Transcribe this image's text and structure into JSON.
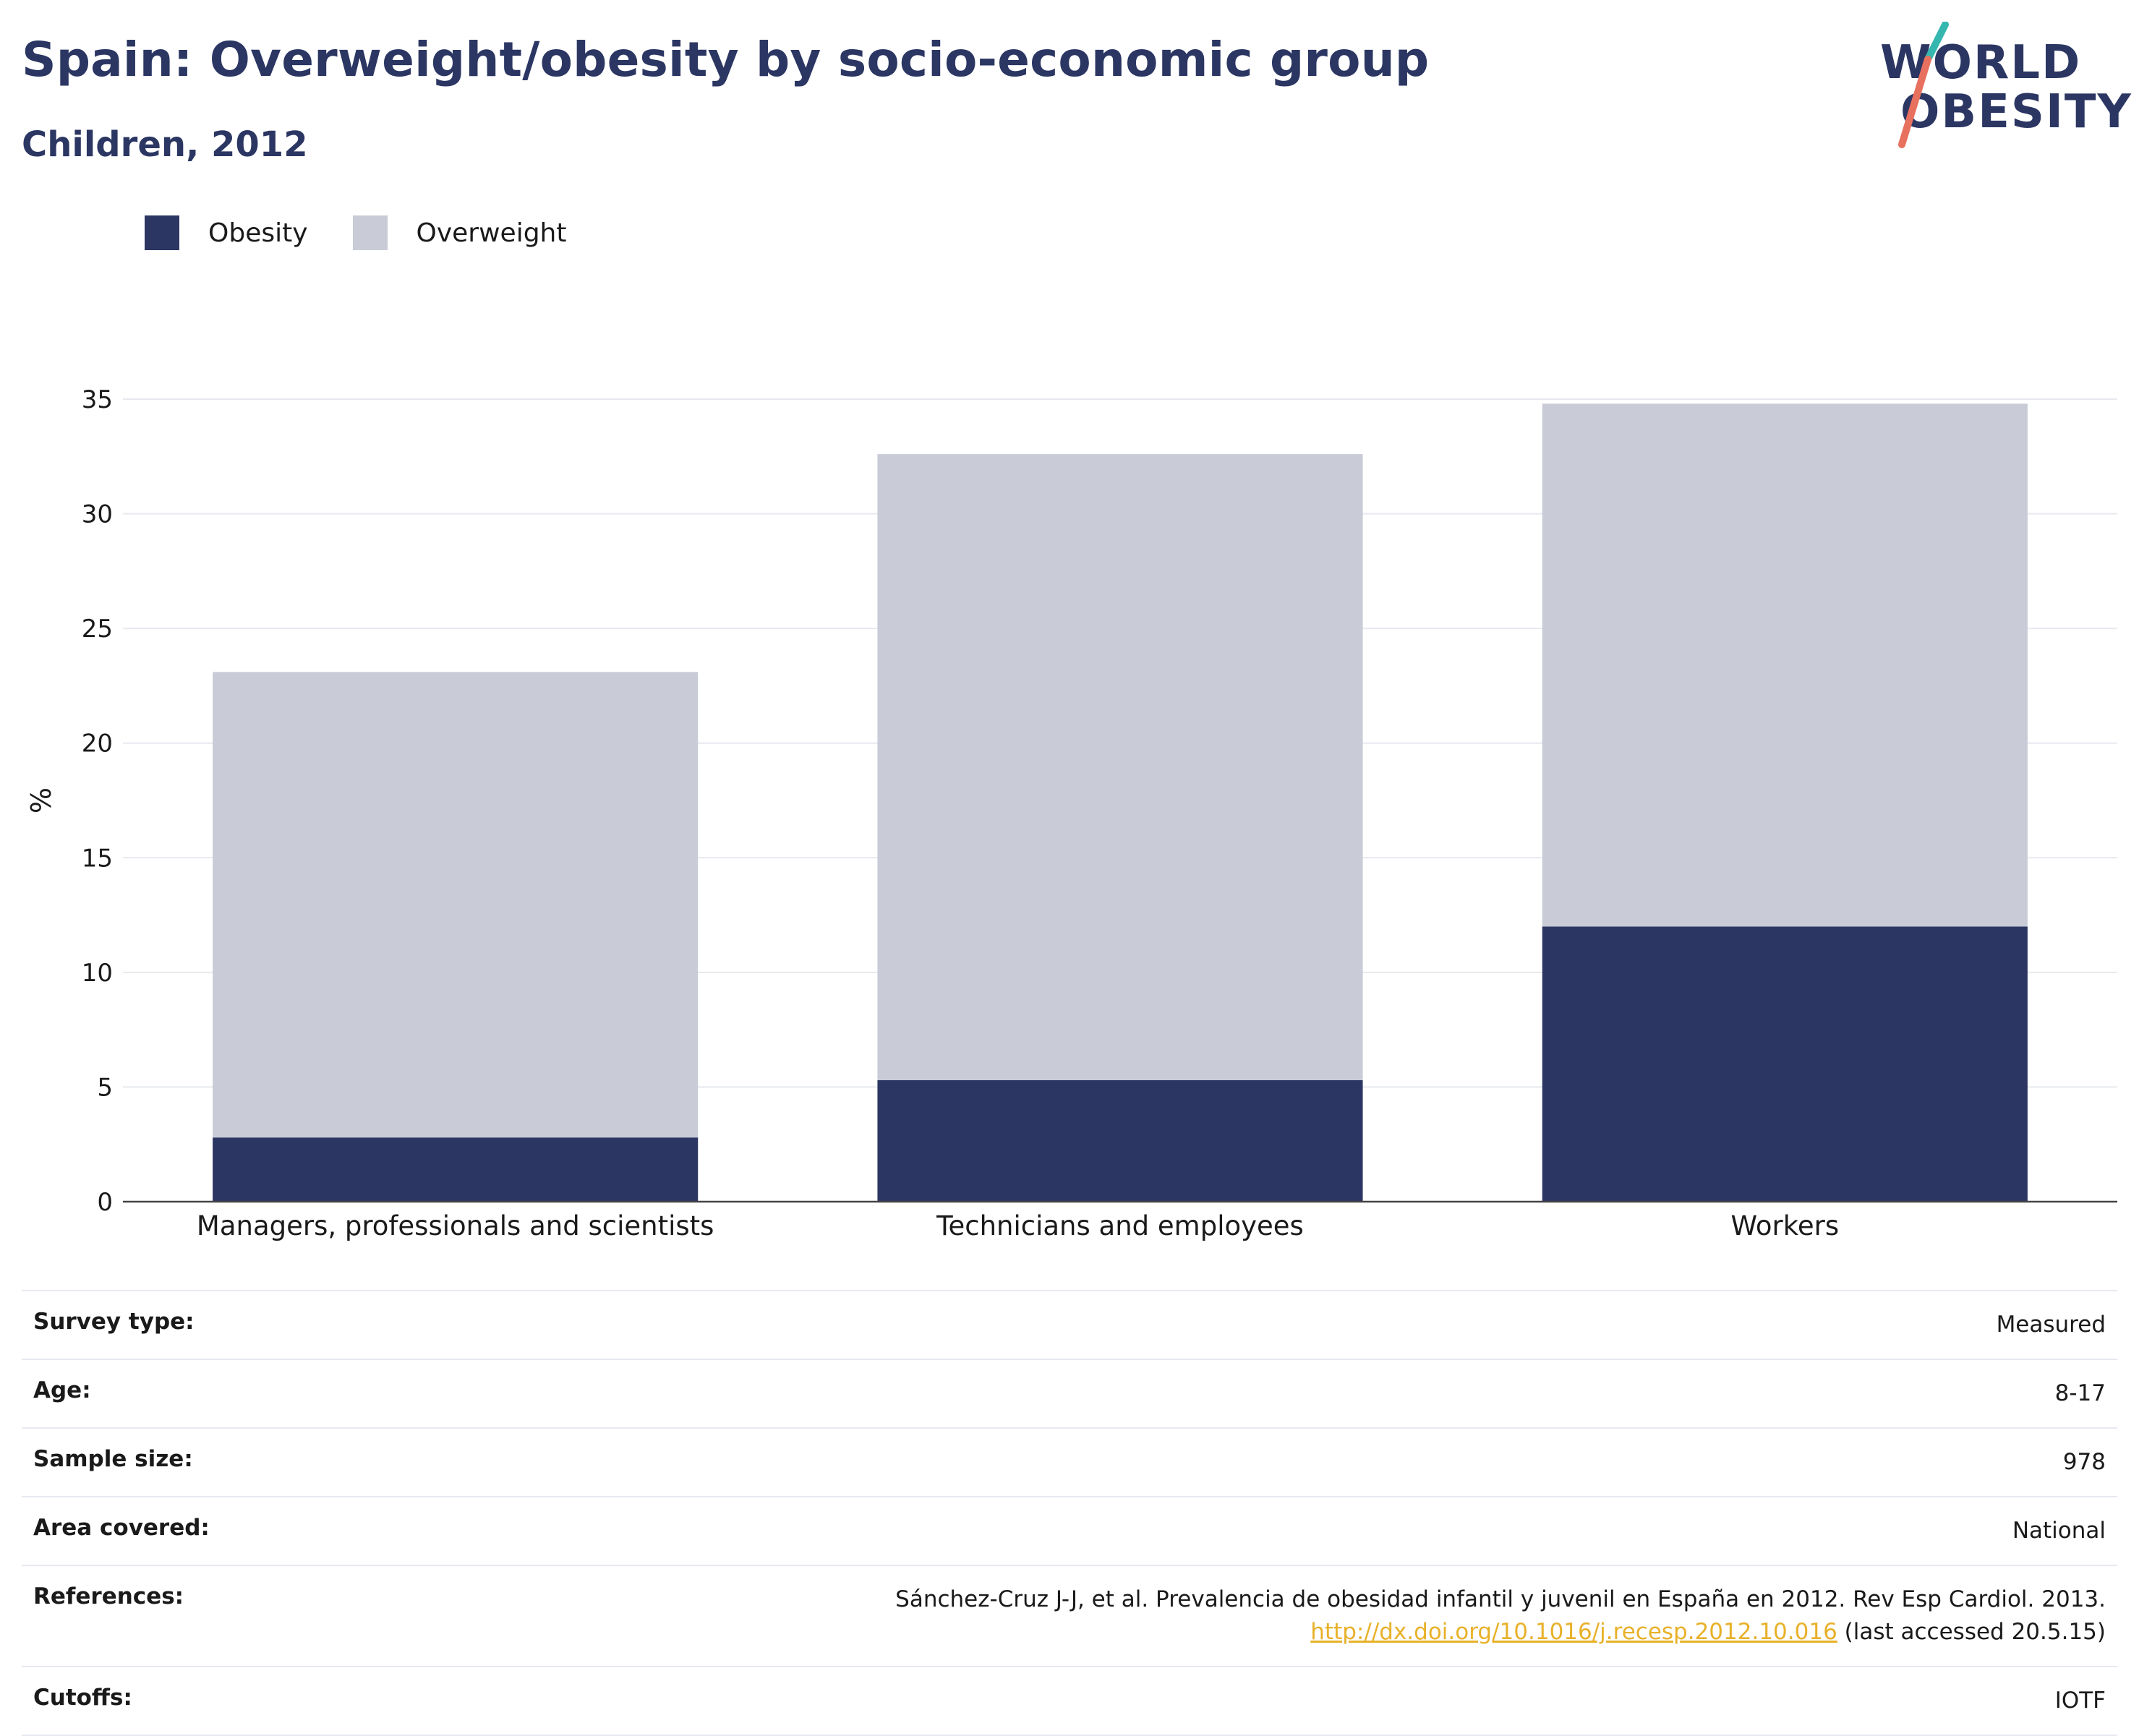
{
  "header": {
    "title": "Spain: Overweight/obesity by socio-economic group",
    "subtitle": "Children, 2012"
  },
  "logo": {
    "line1": "WORLD",
    "line2": "OBESITY"
  },
  "colors": {
    "obesity": "#2b3663",
    "overweight": "#c9cbd7",
    "link": "#e8b12a",
    "title": "#2b3663"
  },
  "chart_data": {
    "type": "bar",
    "stacked": true,
    "categories": [
      "Managers, professionals and scientists",
      "Technicians and employees",
      "Workers"
    ],
    "series": [
      {
        "name": "Obesity",
        "values": [
          2.8,
          5.3,
          12.0
        ]
      },
      {
        "name": "Overweight",
        "values": [
          20.3,
          27.3,
          22.8
        ]
      }
    ],
    "totals": [
      23.1,
      32.6,
      34.8
    ],
    "ylabel": "%",
    "ylim": [
      0,
      35
    ],
    "yticks": [
      0,
      5,
      10,
      15,
      20,
      25,
      30,
      35
    ],
    "grid": true,
    "legend_position": "top-left"
  },
  "info": {
    "survey_type_label": "Survey type:",
    "survey_type": "Measured",
    "age_label": "Age:",
    "age": "8-17",
    "sample_size_label": "Sample size:",
    "sample_size": "978",
    "area_label": "Area covered:",
    "area": "National",
    "references_label": "References:",
    "reference_text": "Sánchez-Cruz J-J, et al. Prevalencia de obesidad infantil y juvenil en España en 2012. Rev Esp Cardiol. 2013.",
    "reference_link": "http://dx.doi.org/10.1016/j.recesp.2012.10.016",
    "reference_suffix": " (last accessed 20.5.15)",
    "cutoffs_label": "Cutoffs:",
    "cutoffs": "IOTF"
  }
}
